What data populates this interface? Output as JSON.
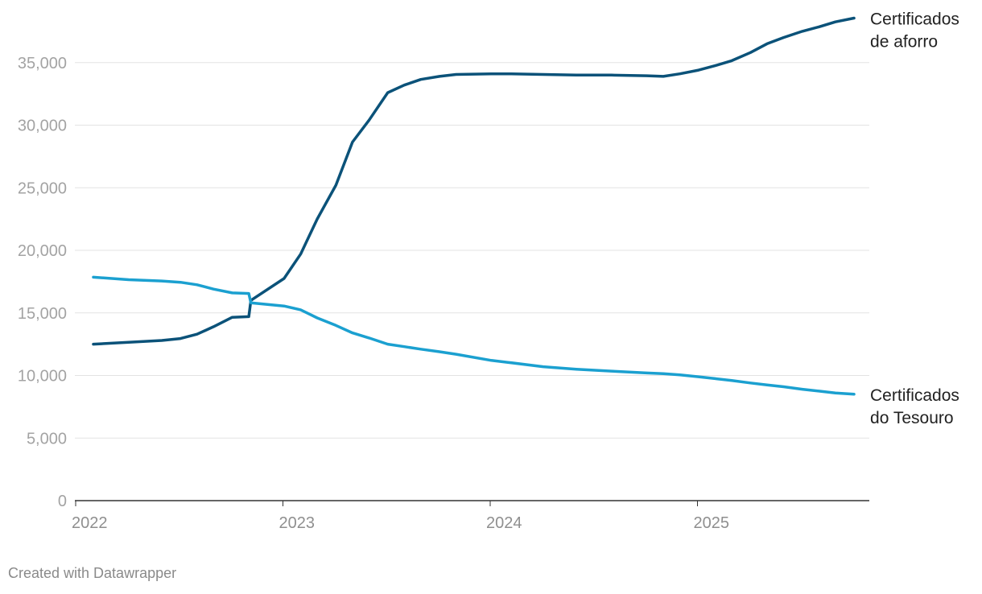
{
  "chart_data": {
    "type": "line",
    "x_unit": "year",
    "ylim": [
      0,
      37500
    ],
    "xlim": [
      2022,
      2025.7
    ],
    "y_ticks": [
      {
        "value": 0,
        "label": "0"
      },
      {
        "value": 5000,
        "label": "5,000"
      },
      {
        "value": 10000,
        "label": "10,000"
      },
      {
        "value": 15000,
        "label": "15,000"
      },
      {
        "value": 20000,
        "label": "20,000"
      },
      {
        "value": 25000,
        "label": "25,000"
      },
      {
        "value": 30000,
        "label": "30,000"
      },
      {
        "value": 35000,
        "label": "35,000"
      }
    ],
    "x_ticks": [
      {
        "value": 2022,
        "label": "2022"
      },
      {
        "value": 2023,
        "label": "2023"
      },
      {
        "value": 2024,
        "label": "2024"
      },
      {
        "value": 2025,
        "label": "2025"
      }
    ],
    "grid": true,
    "legend": "direct labels at line ends",
    "series": [
      {
        "name": "Certificados de aforro",
        "label_lines": [
          "Certificados",
          "de aforro"
        ],
        "color": "#0b5279",
        "x": [
          2022.0,
          2022.17,
          2022.33,
          2022.42,
          2022.5,
          2022.58,
          2022.67,
          2022.75,
          2022.76,
          2022.92,
          2023.0,
          2023.08,
          2023.17,
          2023.25,
          2023.33,
          2023.42,
          2023.5,
          2023.58,
          2023.67,
          2023.75,
          2023.92,
          2024.0,
          2024.17,
          2024.33,
          2024.5,
          2024.67,
          2024.75,
          2024.83,
          2024.92,
          2025.0,
          2025.08,
          2025.17,
          2025.25,
          2025.33,
          2025.42,
          2025.5,
          2025.58,
          2025.67
        ],
        "y": [
          12500,
          12650,
          12800,
          12950,
          13300,
          13900,
          14650,
          14700,
          16000,
          17750,
          19700,
          22500,
          25200,
          28650,
          30400,
          32600,
          33200,
          33650,
          33900,
          34050,
          34100,
          34100,
          34050,
          34000,
          34000,
          33950,
          33900,
          34100,
          34400,
          34750,
          35150,
          35800,
          36500,
          37000,
          37500,
          37850,
          38250,
          38550
        ]
      },
      {
        "name": "Certificados do Tesouro",
        "label_lines": [
          "Certificados",
          "do Tesouro"
        ],
        "color": "#1ba0d0",
        "x": [
          2022.0,
          2022.17,
          2022.33,
          2022.42,
          2022.5,
          2022.58,
          2022.67,
          2022.75,
          2022.76,
          2022.92,
          2023.0,
          2023.08,
          2023.17,
          2023.25,
          2023.33,
          2023.42,
          2023.5,
          2023.58,
          2023.67,
          2023.75,
          2023.92,
          2024.0,
          2024.17,
          2024.33,
          2024.5,
          2024.67,
          2024.75,
          2024.83,
          2024.92,
          2025.0,
          2025.08,
          2025.17,
          2025.25,
          2025.33,
          2025.42,
          2025.5,
          2025.58,
          2025.67
        ],
        "y": [
          17850,
          17650,
          17550,
          17450,
          17250,
          16900,
          16600,
          16550,
          15800,
          15550,
          15250,
          14600,
          14000,
          13400,
          13000,
          12500,
          12300,
          12100,
          11900,
          11700,
          11200,
          11050,
          10700,
          10500,
          10350,
          10200,
          10150,
          10050,
          9900,
          9750,
          9600,
          9400,
          9250,
          9100,
          8900,
          8750,
          8600,
          8500
        ]
      }
    ]
  },
  "credit": "Created with Datawrapper"
}
